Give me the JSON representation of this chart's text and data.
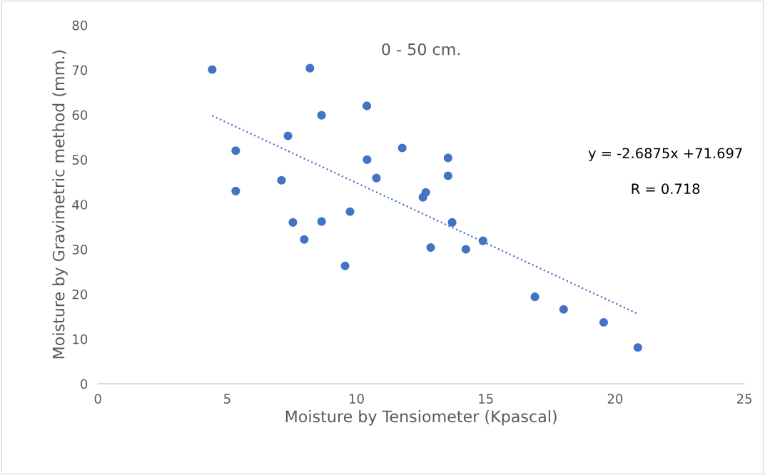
{
  "chart_data": {
    "type": "scatter",
    "title": "0 - 50 cm.",
    "xlabel": "Moisture by Tensiometer (Kpascal)",
    "ylabel": "Moisture by Gravimetric method (mm.)",
    "xlim": [
      0,
      25
    ],
    "xticks": [
      0,
      5,
      10,
      15,
      20,
      25
    ],
    "ylim": [
      0,
      80
    ],
    "yticks": [
      0,
      10,
      20,
      30,
      40,
      50,
      60,
      70,
      80
    ],
    "grid": false,
    "legend": false,
    "series": [
      {
        "marker": "circle",
        "color": "#4472c4",
        "x": [
          4.42,
          8.2,
          8.65,
          10.4,
          7.35,
          5.33,
          5.33,
          7.1,
          7.54,
          8.65,
          7.98,
          9.75,
          9.56,
          10.41,
          10.77,
          11.77,
          12.68,
          12.57,
          13.54,
          13.54,
          13.7,
          12.87,
          14.23,
          14.89,
          16.9,
          18.01,
          19.56,
          20.88
        ],
        "values": [
          70.1,
          70.4,
          59.9,
          62.0,
          55.3,
          52.0,
          43.0,
          45.4,
          36.0,
          36.2,
          32.2,
          38.4,
          26.3,
          50.0,
          45.9,
          52.6,
          42.7,
          41.6,
          50.4,
          46.4,
          36.0,
          30.4,
          30.0,
          31.9,
          19.4,
          16.6,
          13.7,
          8.1
        ]
      },
      {
        "type": "line",
        "color": "#4472c4",
        "line_style": "dotted",
        "x": [
          4.42,
          20.88
        ],
        "values": [
          59.8,
          15.6
        ]
      }
    ],
    "annotations": [
      "y = -2.6875x +71.697",
      "R = 0.718"
    ]
  }
}
